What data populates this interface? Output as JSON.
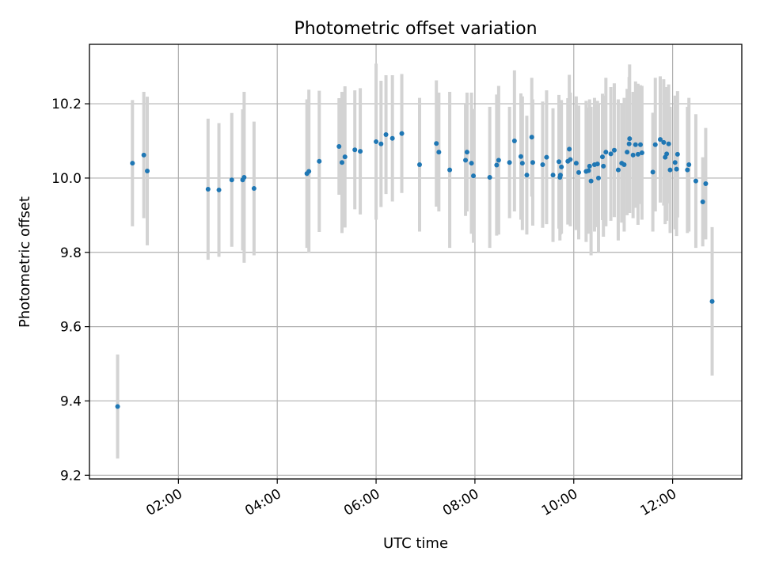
{
  "chart_data": {
    "type": "scatter",
    "title": "Photometric offset variation",
    "xlabel": "UTC time",
    "ylabel": "Photometric offset",
    "xlim_hours": [
      0.2,
      13.4
    ],
    "ylim": [
      9.19,
      10.36
    ],
    "grid": true,
    "x_ticks": [
      {
        "hour": 2,
        "label": "02:00"
      },
      {
        "hour": 4,
        "label": "04:00"
      },
      {
        "hour": 6,
        "label": "06:00"
      },
      {
        "hour": 8,
        "label": "08:00"
      },
      {
        "hour": 10,
        "label": "10:00"
      },
      {
        "hour": 12,
        "label": "12:00"
      }
    ],
    "y_ticks": [
      {
        "value": 9.2,
        "label": "9.2"
      },
      {
        "value": 9.4,
        "label": "9.4"
      },
      {
        "value": 9.6,
        "label": "9.6"
      },
      {
        "value": 9.8,
        "label": "9.8"
      },
      {
        "value": 10.0,
        "label": "10.0"
      },
      {
        "value": 10.2,
        "label": "10.2"
      }
    ],
    "colors": {
      "point": "#1f77b4",
      "errorbar": "#d3d3d3",
      "grid": "#b0b0b0",
      "axis": "#000000"
    },
    "points": [
      [
        0.77,
        9.385,
        0.14
      ],
      [
        1.07,
        10.04,
        0.17
      ],
      [
        1.3,
        10.062,
        0.17
      ],
      [
        1.37,
        10.019,
        0.2
      ],
      [
        2.6,
        9.97,
        0.19
      ],
      [
        2.82,
        9.968,
        0.18
      ],
      [
        3.08,
        9.995,
        0.18
      ],
      [
        3.3,
        9.995,
        0.19
      ],
      [
        3.33,
        10.002,
        0.23
      ],
      [
        3.53,
        9.972,
        0.18
      ],
      [
        4.6,
        10.012,
        0.2
      ],
      [
        4.64,
        10.018,
        0.22
      ],
      [
        4.85,
        10.045,
        0.19
      ],
      [
        5.25,
        10.085,
        0.13
      ],
      [
        5.31,
        10.042,
        0.19
      ],
      [
        5.37,
        10.057,
        0.19
      ],
      [
        5.57,
        10.076,
        0.16
      ],
      [
        5.68,
        10.072,
        0.17
      ],
      [
        6.0,
        10.098,
        0.21
      ],
      [
        6.1,
        10.092,
        0.17
      ],
      [
        6.2,
        10.117,
        0.16
      ],
      [
        6.33,
        10.107,
        0.17
      ],
      [
        6.52,
        10.12,
        0.16
      ],
      [
        6.88,
        10.036,
        0.18
      ],
      [
        7.22,
        10.093,
        0.17
      ],
      [
        7.27,
        10.07,
        0.16
      ],
      [
        7.49,
        10.022,
        0.21
      ],
      [
        7.81,
        10.048,
        0.15
      ],
      [
        7.84,
        10.07,
        0.16
      ],
      [
        7.93,
        10.04,
        0.19
      ],
      [
        7.97,
        10.006,
        0.18
      ],
      [
        8.3,
        10.002,
        0.19
      ],
      [
        8.44,
        10.035,
        0.19
      ],
      [
        8.48,
        10.048,
        0.2
      ],
      [
        8.7,
        10.042,
        0.15
      ],
      [
        8.8,
        10.1,
        0.19
      ],
      [
        8.93,
        10.058,
        0.17
      ],
      [
        8.96,
        10.04,
        0.18
      ],
      [
        9.05,
        10.008,
        0.16
      ],
      [
        9.15,
        10.11,
        0.16
      ],
      [
        9.17,
        10.042,
        0.17
      ],
      [
        9.37,
        10.036,
        0.17
      ],
      [
        9.45,
        10.056,
        0.18
      ],
      [
        9.58,
        10.008,
        0.18
      ],
      [
        9.7,
        10.044,
        0.18
      ],
      [
        9.72,
        10.002,
        0.17
      ],
      [
        9.73,
        10.008,
        0.16
      ],
      [
        9.75,
        10.03,
        0.18
      ],
      [
        9.88,
        10.045,
        0.17
      ],
      [
        9.91,
        10.078,
        0.2
      ],
      [
        9.93,
        10.05,
        0.18
      ],
      [
        10.05,
        10.04,
        0.18
      ],
      [
        10.1,
        10.015,
        0.18
      ],
      [
        10.25,
        10.018,
        0.19
      ],
      [
        10.3,
        10.02,
        0.17
      ],
      [
        10.32,
        10.032,
        0.18
      ],
      [
        10.35,
        9.992,
        0.2
      ],
      [
        10.42,
        10.036,
        0.18
      ],
      [
        10.48,
        10.038,
        0.17
      ],
      [
        10.5,
        10.0,
        0.2
      ],
      [
        10.58,
        10.057,
        0.17
      ],
      [
        10.6,
        10.032,
        0.19
      ],
      [
        10.65,
        10.07,
        0.2
      ],
      [
        10.75,
        10.065,
        0.18
      ],
      [
        10.82,
        10.075,
        0.18
      ],
      [
        10.9,
        10.022,
        0.19
      ],
      [
        10.97,
        10.04,
        0.16
      ],
      [
        11.02,
        10.036,
        0.18
      ],
      [
        11.08,
        10.07,
        0.17
      ],
      [
        11.12,
        10.092,
        0.18
      ],
      [
        11.13,
        10.106,
        0.2
      ],
      [
        11.2,
        10.062,
        0.17
      ],
      [
        11.25,
        10.09,
        0.17
      ],
      [
        11.3,
        10.064,
        0.19
      ],
      [
        11.35,
        10.09,
        0.16
      ],
      [
        11.38,
        10.068,
        0.18
      ],
      [
        11.6,
        10.016,
        0.16
      ],
      [
        11.65,
        10.09,
        0.18
      ],
      [
        11.75,
        10.104,
        0.17
      ],
      [
        11.82,
        10.096,
        0.17
      ],
      [
        11.85,
        10.056,
        0.18
      ],
      [
        11.88,
        10.065,
        0.18
      ],
      [
        11.92,
        10.092,
        0.16
      ],
      [
        11.95,
        10.022,
        0.17
      ],
      [
        12.05,
        10.042,
        0.18
      ],
      [
        12.08,
        10.024,
        0.18
      ],
      [
        12.1,
        10.064,
        0.17
      ],
      [
        12.3,
        10.022,
        0.17
      ],
      [
        12.33,
        10.036,
        0.18
      ],
      [
        12.47,
        9.992,
        0.18
      ],
      [
        12.61,
        9.936,
        0.12
      ],
      [
        12.67,
        9.985,
        0.15
      ],
      [
        12.8,
        9.668,
        0.2
      ]
    ]
  }
}
